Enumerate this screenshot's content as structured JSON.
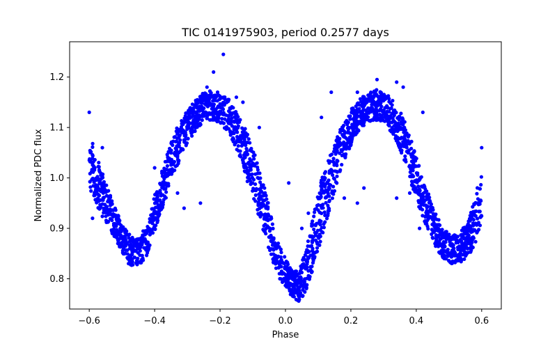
{
  "chart_data": {
    "type": "scatter",
    "title": "TIC 0141975903, period 0.2577 days",
    "xlabel": "Phase",
    "ylabel": "Normalized PDC flux",
    "xlim": [
      -0.66,
      0.66
    ],
    "ylim": [
      0.74,
      1.27
    ],
    "xticks": [
      -0.6,
      -0.4,
      -0.2,
      0.0,
      0.2,
      0.4,
      0.6
    ],
    "xtick_labels": [
      "−0.6",
      "−0.4",
      "−0.2",
      "0.0",
      "0.2",
      "0.4",
      "0.6"
    ],
    "yticks": [
      0.8,
      0.9,
      1.0,
      1.1,
      1.2
    ],
    "ytick_labels": [
      "0.8",
      "0.9",
      "1.0",
      "1.1",
      "1.2"
    ],
    "grid": false,
    "marker_color": "#0000ff",
    "series": [
      {
        "x": [
          -0.6,
          -0.58,
          -0.55,
          -0.52,
          -0.5,
          -0.48,
          -0.45,
          -0.42,
          -0.4,
          -0.37,
          -0.34,
          -0.31,
          -0.28,
          -0.25,
          -0.23,
          -0.2,
          -0.17,
          -0.14,
          -0.11,
          -0.08,
          -0.05,
          -0.03,
          0.0,
          0.02,
          0.04,
          0.06,
          0.08,
          0.11,
          0.14,
          0.17,
          0.2,
          0.23,
          0.26,
          0.28,
          0.3,
          0.33,
          0.36,
          0.39,
          0.42,
          0.45,
          0.48,
          0.5,
          0.53,
          0.56,
          0.58,
          0.6
        ],
        "y": [
          1.04,
          1.0,
          0.95,
          0.91,
          0.88,
          0.86,
          0.85,
          0.88,
          0.93,
          0.99,
          1.05,
          1.09,
          1.12,
          1.14,
          1.145,
          1.14,
          1.12,
          1.08,
          1.03,
          0.97,
          0.9,
          0.85,
          0.81,
          0.79,
          0.785,
          0.81,
          0.86,
          0.94,
          1.0,
          1.06,
          1.1,
          1.13,
          1.14,
          1.145,
          1.14,
          1.12,
          1.08,
          1.02,
          0.96,
          0.91,
          0.87,
          0.86,
          0.86,
          0.88,
          0.92,
          0.96
        ],
        "spread": [
          0.06,
          0.05,
          0.04,
          0.03,
          0.03,
          0.03,
          0.03,
          0.03,
          0.035,
          0.04,
          0.04,
          0.035,
          0.03,
          0.03,
          0.03,
          0.03,
          0.035,
          0.04,
          0.05,
          0.05,
          0.045,
          0.035,
          0.03,
          0.025,
          0.03,
          0.04,
          0.05,
          0.06,
          0.05,
          0.04,
          0.035,
          0.03,
          0.03,
          0.03,
          0.03,
          0.035,
          0.04,
          0.045,
          0.04,
          0.035,
          0.03,
          0.03,
          0.03,
          0.035,
          0.05,
          0.05
        ]
      }
    ],
    "outliers": [
      {
        "x": -0.6,
        "y": 1.13
      },
      {
        "x": -0.59,
        "y": 0.92
      },
      {
        "x": -0.56,
        "y": 1.06
      },
      {
        "x": -0.4,
        "y": 1.02
      },
      {
        "x": -0.33,
        "y": 0.97
      },
      {
        "x": -0.31,
        "y": 0.94
      },
      {
        "x": -0.26,
        "y": 0.95
      },
      {
        "x": -0.26,
        "y": 1.15
      },
      {
        "x": -0.24,
        "y": 1.18
      },
      {
        "x": -0.22,
        "y": 1.21
      },
      {
        "x": -0.19,
        "y": 1.245
      },
      {
        "x": -0.19,
        "y": 1.16
      },
      {
        "x": -0.15,
        "y": 1.16
      },
      {
        "x": -0.13,
        "y": 1.15
      },
      {
        "x": -0.08,
        "y": 1.1
      },
      {
        "x": 0.01,
        "y": 0.99
      },
      {
        "x": 0.05,
        "y": 0.9
      },
      {
        "x": 0.07,
        "y": 0.93
      },
      {
        "x": 0.11,
        "y": 1.12
      },
      {
        "x": 0.14,
        "y": 1.17
      },
      {
        "x": 0.18,
        "y": 0.96
      },
      {
        "x": 0.22,
        "y": 1.17
      },
      {
        "x": 0.22,
        "y": 0.95
      },
      {
        "x": 0.24,
        "y": 0.98
      },
      {
        "x": 0.27,
        "y": 1.16
      },
      {
        "x": 0.28,
        "y": 1.195
      },
      {
        "x": 0.3,
        "y": 1.16
      },
      {
        "x": 0.34,
        "y": 1.19
      },
      {
        "x": 0.34,
        "y": 0.96
      },
      {
        "x": 0.36,
        "y": 1.18
      },
      {
        "x": 0.38,
        "y": 0.97
      },
      {
        "x": 0.42,
        "y": 1.13
      },
      {
        "x": 0.41,
        "y": 0.9
      },
      {
        "x": 0.6,
        "y": 1.06
      }
    ]
  }
}
